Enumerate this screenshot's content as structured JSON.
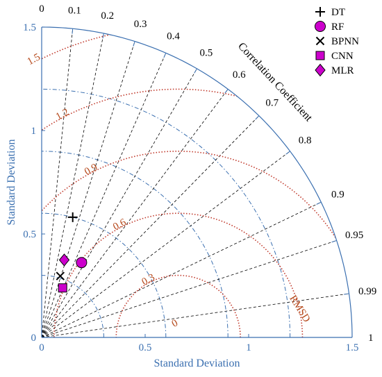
{
  "chart_data": {
    "type": "taylor-diagram",
    "xlabel": "Standard Deviation",
    "ylabel": "Standard Deviation",
    "arc_title": "Correlation Coefficient",
    "rmsd_title": "RMSD",
    "std_max": 1.5,
    "reference_std": 0.66,
    "std_ticks": [
      0,
      0.5,
      1,
      1.5
    ],
    "x_tick_labels": [
      "0",
      "0.5",
      "1",
      "1.5"
    ],
    "y_tick_labels": [
      "0",
      "0.5",
      "1",
      "1.5"
    ],
    "std_arcs": [
      0.3,
      0.6,
      0.9,
      1.2
    ],
    "correlation_ticks": [
      {
        "value": 0,
        "label": "0"
      },
      {
        "value": 0.1,
        "label": "0.1"
      },
      {
        "value": 0.2,
        "label": "0.2"
      },
      {
        "value": 0.3,
        "label": "0.3"
      },
      {
        "value": 0.4,
        "label": "0.4"
      },
      {
        "value": 0.5,
        "label": "0.5"
      },
      {
        "value": 0.6,
        "label": "0.6"
      },
      {
        "value": 0.7,
        "label": "0.7"
      },
      {
        "value": 0.8,
        "label": "0.8"
      },
      {
        "value": 0.9,
        "label": "0.9"
      },
      {
        "value": 0.95,
        "label": "0.95"
      },
      {
        "value": 0.99,
        "label": "0.99"
      },
      {
        "value": 1,
        "label": "1"
      }
    ],
    "rmsd_contours": [
      {
        "value": 0.3,
        "label": "0.3"
      },
      {
        "value": 0.6,
        "label": "0.6"
      },
      {
        "value": 0.9,
        "label": "0.9"
      },
      {
        "value": 1.2,
        "label": "1.2"
      },
      {
        "value": 1.5,
        "label": "1.5"
      }
    ],
    "rmsd_zero_label": "0",
    "series": [
      {
        "name": "DT",
        "marker": "plus",
        "std": 0.6,
        "correlation": 0.25,
        "color": "#000000"
      },
      {
        "name": "RF",
        "marker": "circle",
        "std": 0.41,
        "correlation": 0.47,
        "color": "#cc00cc"
      },
      {
        "name": "BPNN",
        "marker": "cross",
        "std": 0.31,
        "correlation": 0.29,
        "color": "#000000"
      },
      {
        "name": "CNN",
        "marker": "square",
        "std": 0.26,
        "correlation": 0.39,
        "color": "#cc00cc"
      },
      {
        "name": "MLR",
        "marker": "diamond",
        "std": 0.39,
        "correlation": 0.28,
        "color": "#cc00cc"
      }
    ],
    "colors": {
      "axis": "#3a6fb0",
      "std_arc": "#3a6fb0",
      "correlation_line": "#000000",
      "rmsd": "#c0392b",
      "rmsd_label": "#b5481a",
      "marker_fill": "#cc00cc"
    }
  }
}
